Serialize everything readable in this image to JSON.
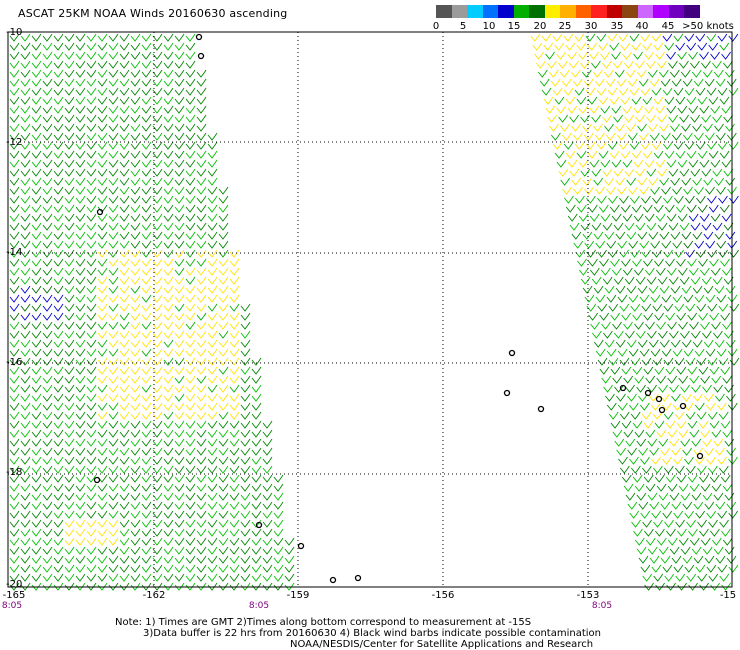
{
  "title": "ASCAT 25KM NOAA Winds 20160630 ascending",
  "legend": {
    "labels": [
      "0",
      "5",
      "10",
      "15",
      "20",
      "25",
      "30",
      "35",
      "40",
      "45",
      ">50 knots"
    ],
    "colors": [
      "#555555",
      "#9b9b9b",
      "#00ccff",
      "#0070ff",
      "#0000cc",
      "#00b000",
      "#007000",
      "#ffee00",
      "#ffb000",
      "#ff6000",
      "#ff2020",
      "#c00000",
      "#8b4513",
      "#cc66ff",
      "#b000ff",
      "#7000c0",
      "#400080"
    ]
  },
  "map": {
    "lat_labels": [
      "-10",
      "-12",
      "-14",
      "-16",
      "-18",
      "-20"
    ],
    "lon_labels": [
      "-165",
      "-162",
      "-159",
      "-156",
      "-153",
      "-15"
    ],
    "time_labels": [
      "8:05",
      "8:05",
      "8:05"
    ]
  },
  "notes": {
    "line1": "Note: 1) Times are GMT 2)Times along bottom correspond to measurement at -15S",
    "line2": "3)Data buffer is 22 hrs from 20160630 4) Black wind barbs indicate possible contamination",
    "line3": "NOAA/NESDIS/Center for Satellite Applications and Research"
  }
}
